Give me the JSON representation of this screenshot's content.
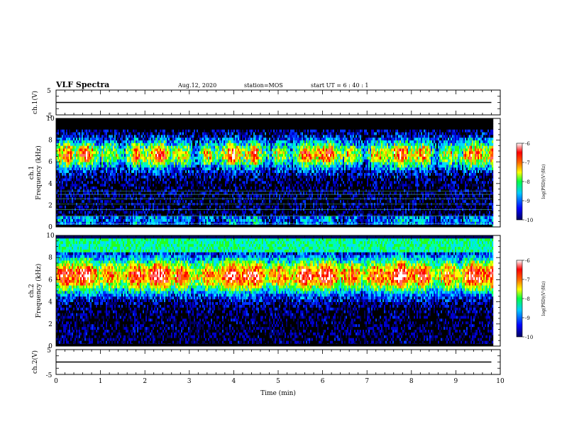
{
  "header": {
    "title": "VLF Spectra",
    "date": "Aug.12, 2020",
    "station": "station=MOS",
    "start_ut": "start  UT  =   6  : 40 : 1"
  },
  "chart_data": [
    {
      "type": "line",
      "panel": "ch1-voltage",
      "ylabel": "ch.1(V)",
      "ylim": [
        -5,
        5
      ],
      "yticks": [
        "5",
        "-5"
      ],
      "series": [
        {
          "x": [
            0,
            9.8
          ],
          "y": [
            0,
            0
          ]
        }
      ]
    },
    {
      "type": "heatmap",
      "panel": "ch1-spectrogram",
      "ylabel": "ch.1 Frequency (kHz)",
      "ylim": [
        0,
        10
      ],
      "yticks": [
        "0",
        "2",
        "4",
        "6",
        "8",
        "10"
      ],
      "colorbar": {
        "label": "log(PSD)(V²/Hz)",
        "range": [
          -10,
          -6
        ],
        "ticks": [
          "-6",
          "-7",
          "-8",
          "-9",
          "-10"
        ]
      }
    },
    {
      "type": "heatmap",
      "panel": "ch2-spectrogram",
      "ylabel": "ch.2 Frequency (kHz)",
      "ylim": [
        0,
        10
      ],
      "yticks": [
        "0",
        "2",
        "4",
        "6",
        "8",
        "10"
      ],
      "colorbar": {
        "label": "log(PSD)(V²/Hz)",
        "range": [
          -10,
          -6
        ],
        "ticks": [
          "-6",
          "-7",
          "-8",
          "-9",
          "-10"
        ]
      }
    },
    {
      "type": "line",
      "panel": "ch2-voltage",
      "ylabel": "ch.2(V)",
      "ylim": [
        -5,
        5
      ],
      "yticks": [
        "5",
        "-5"
      ],
      "series": [
        {
          "x": [
            0,
            9.8
          ],
          "y": [
            0,
            0
          ]
        }
      ]
    }
  ],
  "xaxis": {
    "label": "Time  (min)",
    "xlim": [
      0,
      10
    ],
    "ticks": [
      "0",
      "1",
      "2",
      "3",
      "4",
      "5",
      "6",
      "7",
      "8",
      "9",
      "10"
    ],
    "data_end": 9.82
  },
  "colors": {
    "spectrum": [
      "#000066",
      "#0000ff",
      "#00aaff",
      "#00ffcc",
      "#44ff00",
      "#ffff00",
      "#ff9900",
      "#ff2200",
      "#ffffff"
    ]
  }
}
